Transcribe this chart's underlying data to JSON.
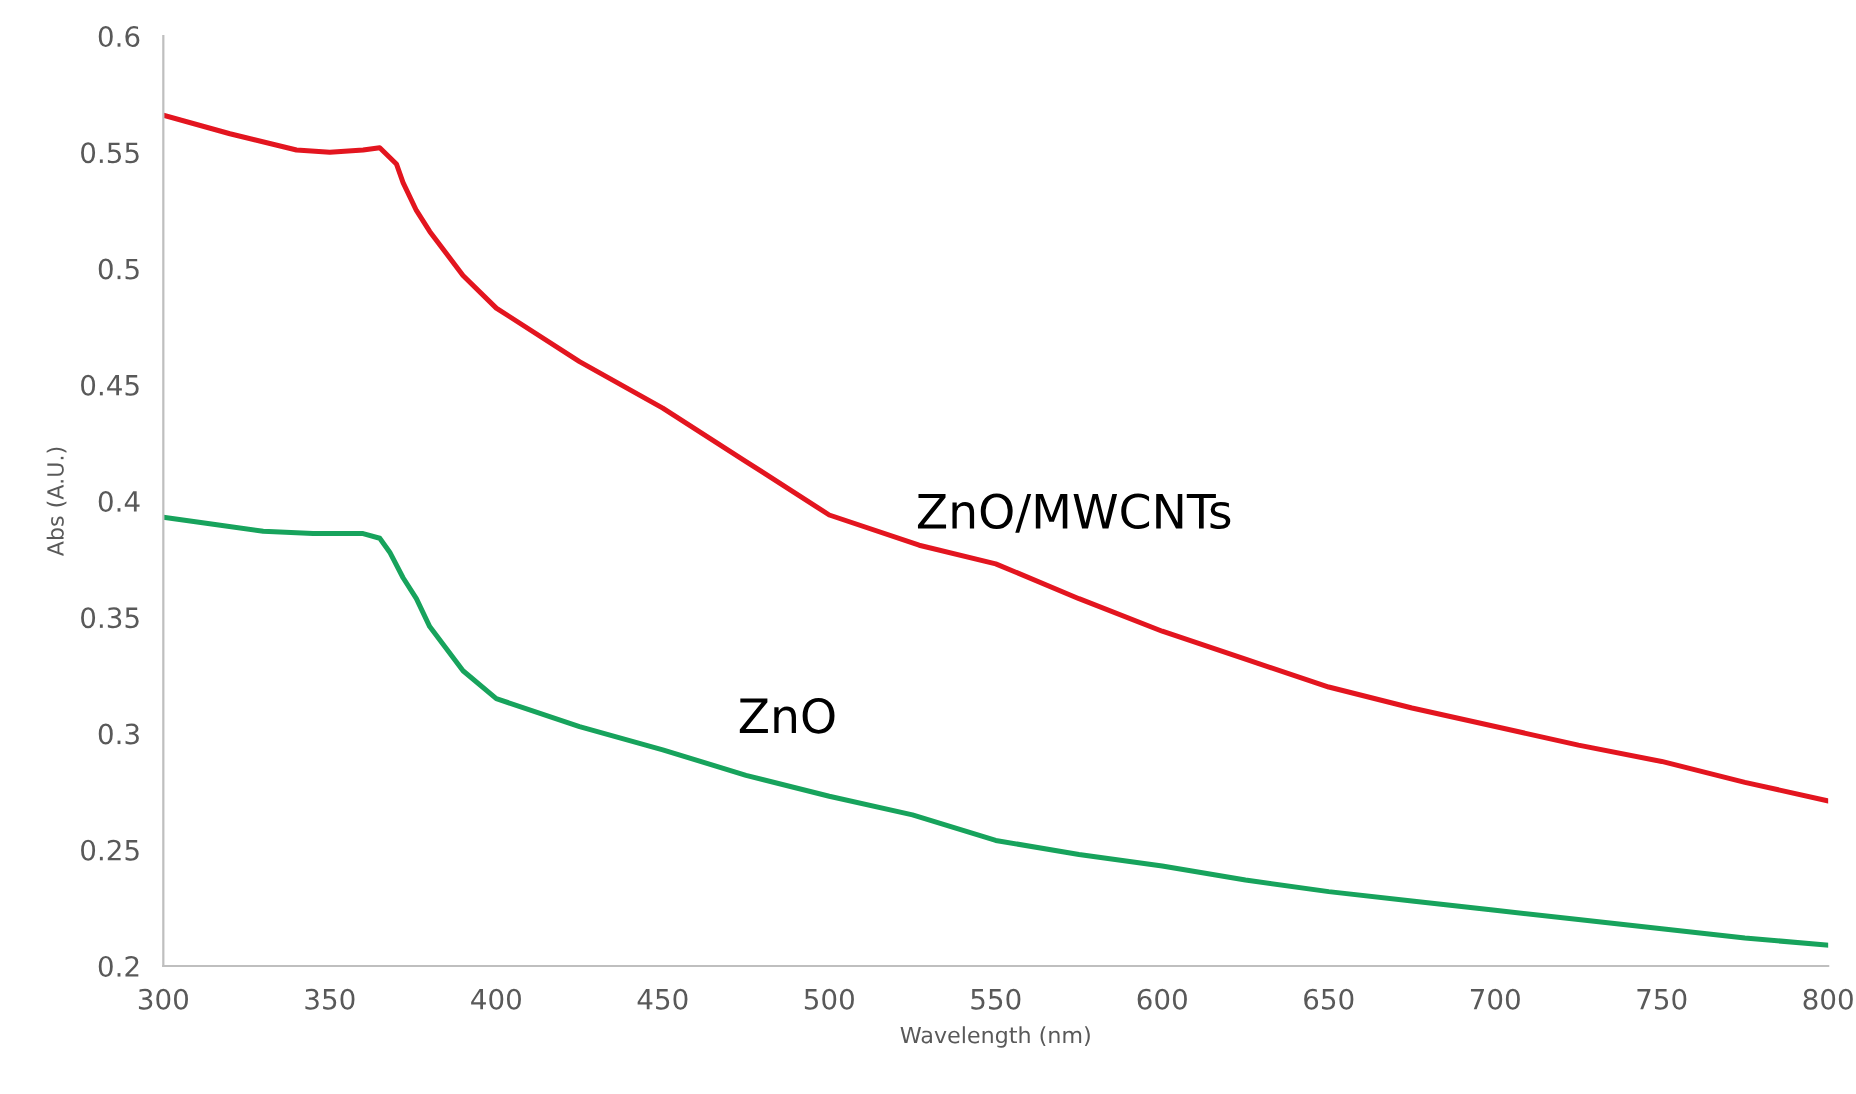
{
  "chart_data": {
    "type": "line",
    "xlabel": "Wavelength (nm)",
    "ylabel": "Abs (A.U.)",
    "xlim": [
      300,
      800
    ],
    "ylim": [
      0.2,
      0.6
    ],
    "xticks": [
      300,
      350,
      400,
      450,
      500,
      550,
      600,
      650,
      700,
      750,
      800
    ],
    "yticks": [
      {
        "value": 0.2,
        "label": "0.2"
      },
      {
        "value": 0.25,
        "label": "0.25"
      },
      {
        "value": 0.3,
        "label": "0.3"
      },
      {
        "value": 0.35,
        "label": "0.35"
      },
      {
        "value": 0.4,
        "label": "0.4"
      },
      {
        "value": 0.45,
        "label": "0.45"
      },
      {
        "value": 0.5,
        "label": "0.5"
      },
      {
        "value": 0.55,
        "label": "0.55"
      },
      {
        "value": 0.6,
        "label": "0.6"
      }
    ],
    "grid": false,
    "legend": false,
    "marker": "none",
    "line_style": "solid",
    "series": [
      {
        "name": "ZnO/MWCNTs",
        "color": "#e3151f",
        "x": [
          300,
          320,
          340,
          350,
          360,
          365,
          370,
          372,
          376,
          380,
          390,
          400,
          425,
          450,
          475,
          500,
          527,
          550,
          575,
          600,
          625,
          650,
          675,
          700,
          725,
          750,
          775,
          800
        ],
        "values": [
          0.566,
          0.558,
          0.551,
          0.55,
          0.551,
          0.552,
          0.545,
          0.537,
          0.525,
          0.516,
          0.497,
          0.483,
          0.46,
          0.44,
          0.417,
          0.394,
          0.381,
          0.373,
          0.358,
          0.344,
          0.332,
          0.32,
          0.311,
          0.303,
          0.295,
          0.288,
          0.279,
          0.271
        ]
      },
      {
        "name": "ZnO",
        "color": "#17a35c",
        "x": [
          300,
          315,
          330,
          345,
          360,
          365,
          368,
          372,
          376,
          380,
          390,
          400,
          425,
          450,
          475,
          500,
          525,
          550,
          575,
          600,
          625,
          650,
          675,
          700,
          725,
          750,
          775,
          800
        ],
        "values": [
          0.393,
          0.39,
          0.387,
          0.386,
          0.386,
          0.384,
          0.378,
          0.367,
          0.358,
          0.346,
          0.327,
          0.315,
          0.303,
          0.293,
          0.282,
          0.273,
          0.265,
          0.254,
          0.248,
          0.243,
          0.237,
          0.232,
          0.228,
          0.224,
          0.22,
          0.216,
          0.212,
          0.209
        ]
      }
    ]
  }
}
